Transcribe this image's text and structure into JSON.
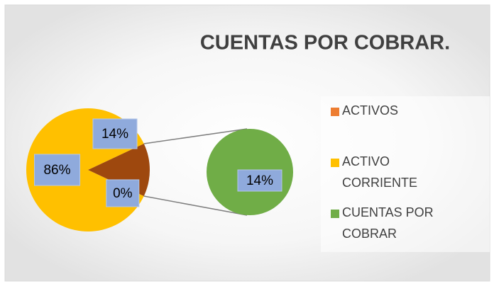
{
  "chart_data": {
    "type": "pie-of-pie",
    "title": "CUENTAS POR COBRAR.",
    "categories": [
      "ACTIVOS",
      "ACTIVO CORRIENTE",
      "CUENTAS POR COBRAR"
    ],
    "values": [
      0,
      86,
      14
    ],
    "value_labels": [
      "0%",
      "86%",
      "14%"
    ],
    "colors": [
      "#ed7d31",
      "#ffc000",
      "#70ad47"
    ],
    "other_color": "#9e480e",
    "split_count": 1,
    "legend": "right"
  }
}
